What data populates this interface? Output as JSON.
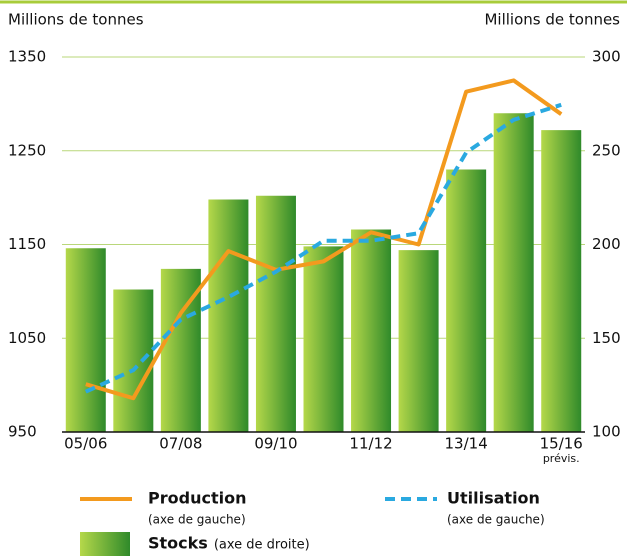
{
  "chart_data": {
    "type": "combo",
    "y_label": "Millions de tonnes",
    "y2_label": "Millions de tonnes",
    "categories": [
      "05/06",
      null,
      "07/08",
      null,
      "09/10",
      null,
      "11/12",
      null,
      "13/14",
      null,
      "15/16"
    ],
    "category_note": "prévis.",
    "ylim": [
      950,
      1350
    ],
    "yticks": [
      950,
      1050,
      1150,
      1250,
      1350
    ],
    "y2lim": [
      100,
      300
    ],
    "y2ticks": [
      100,
      150,
      200,
      250,
      300
    ],
    "grid": true,
    "series": [
      {
        "name": "Stocks",
        "note": "(axe de droite)",
        "type": "bar",
        "axis": "y2",
        "color": "#2f8a2a",
        "values": [
          198,
          176,
          187,
          224,
          226,
          199,
          208,
          197,
          240,
          270,
          261
        ]
      },
      {
        "name": "Production",
        "note": "(axe de gauche)",
        "type": "line",
        "color": "#f39a1e",
        "values": [
          1001,
          986,
          1077,
          1143,
          1123,
          1132,
          1163,
          1150,
          1313,
          1325,
          1289
        ]
      },
      {
        "name": "Utilisation",
        "note": "(axe de gauche)",
        "type": "dash",
        "color": "#2aa9e0",
        "values": [
          993,
          1016,
          1070,
          1094,
          1121,
          1154,
          1154,
          1162,
          1248,
          1283,
          1299
        ]
      }
    ]
  }
}
